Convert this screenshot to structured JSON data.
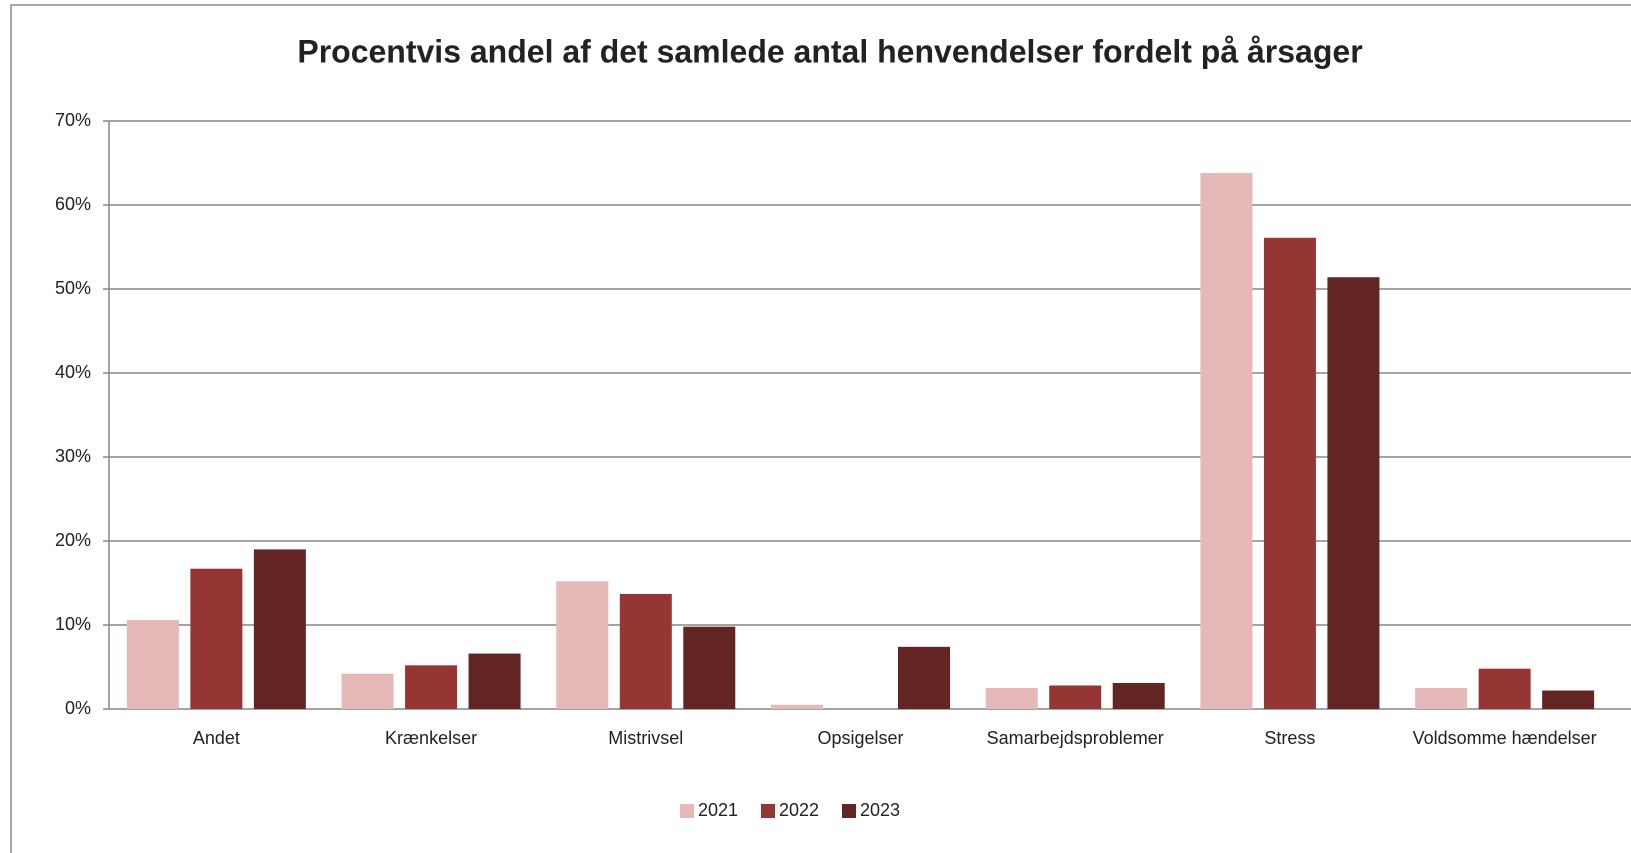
{
  "chart_data": {
    "type": "bar",
    "title": "Procentvis andel af det samlede antal henvendelser fordelt på årsager",
    "categories": [
      "Andet",
      "Krænkelser",
      "Mistrivsel",
      "Opsigelser",
      "Samarbejdsproblemer",
      "Stress",
      "Voldsomme hændelser"
    ],
    "series": [
      {
        "name": "2021",
        "color": "#e6b8b7",
        "values": [
          10.6,
          4.2,
          15.2,
          0.5,
          2.5,
          63.8,
          2.5
        ]
      },
      {
        "name": "2022",
        "color": "#963634",
        "values": [
          16.7,
          5.2,
          13.7,
          0,
          2.8,
          56.1,
          4.8
        ]
      },
      {
        "name": "2023",
        "color": "#632523",
        "values": [
          19.0,
          6.6,
          9.8,
          7.4,
          3.1,
          51.4,
          2.2
        ]
      }
    ],
    "ylim": [
      0,
      70
    ],
    "yticks": [
      {
        "value": 0,
        "label": "0%"
      },
      {
        "value": 10,
        "label": "10%"
      },
      {
        "value": 20,
        "label": "20%"
      },
      {
        "value": 30,
        "label": "30%"
      },
      {
        "value": 40,
        "label": "40%"
      },
      {
        "value": 50,
        "label": "50%"
      },
      {
        "value": 60,
        "label": "60%"
      },
      {
        "value": 70,
        "label": "70%"
      }
    ],
    "grid": true,
    "legend": "bottom"
  }
}
